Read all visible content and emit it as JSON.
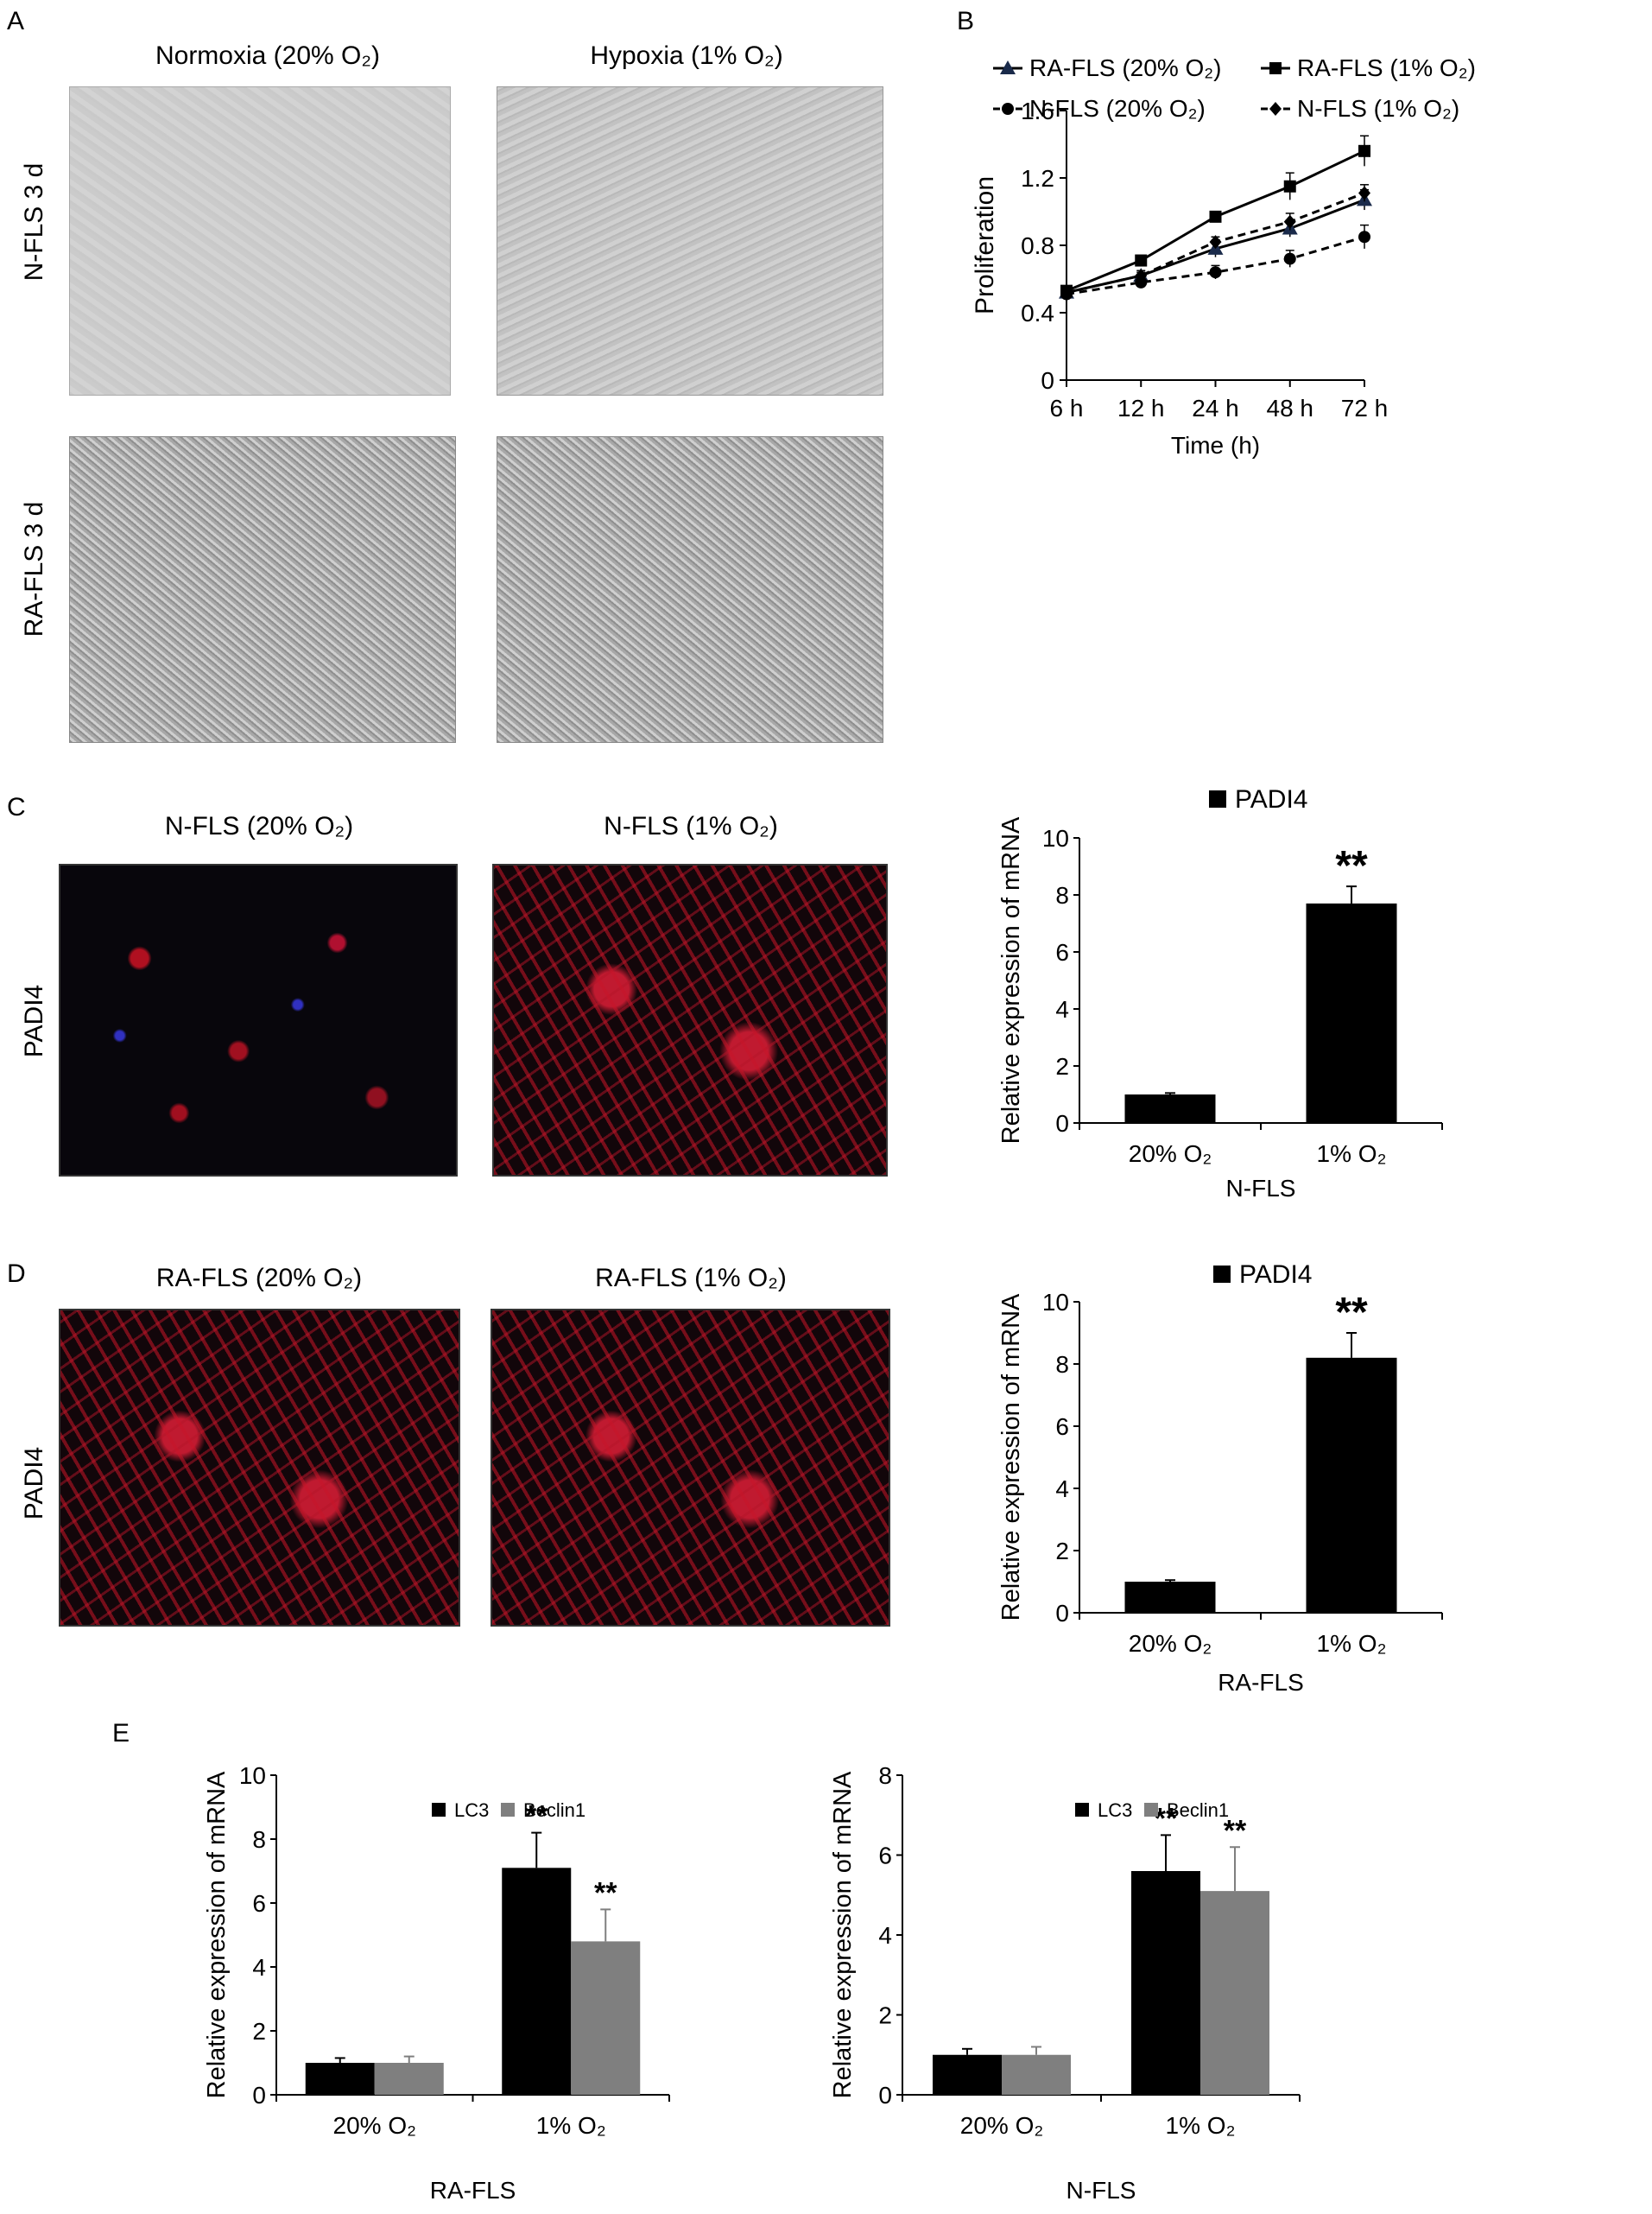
{
  "panelA": {
    "letter": "A",
    "col_labels": [
      "Normoxia (20% O₂)",
      "Hypoxia (1% O₂)"
    ],
    "row_labels": [
      "N-FLS 3 d",
      "RA-FLS 3 d"
    ]
  },
  "panelB": {
    "letter": "B"
  },
  "panelC": {
    "letter": "C",
    "col_labels": [
      "N-FLS (20% O₂)",
      "N-FLS (1% O₂)"
    ],
    "row_label": "PADI4"
  },
  "panelD": {
    "letter": "D",
    "col_labels": [
      "RA-FLS (20% O₂)",
      "RA-FLS (1% O₂)"
    ],
    "row_label": "PADI4"
  },
  "panelE": {
    "letter": "E"
  },
  "colors": {
    "black": "#000000",
    "gray": "#7f7f7f",
    "triangle_series": "#1a2a4a"
  },
  "chart_data": [
    {
      "id": "B",
      "type": "line",
      "xlabel": "Time (h)",
      "ylabel": "Proliferation",
      "categories": [
        "6 h",
        "12 h",
        "24 h",
        "48 h",
        "72 h"
      ],
      "ylim": [
        0,
        1.6
      ],
      "yticks": [
        "0",
        "0.4",
        "0.8",
        "1.2",
        "1.6"
      ],
      "legend": "top",
      "series": [
        {
          "name": "RA-FLS (20% O₂)",
          "marker": "triangle",
          "dash": "solid",
          "values": [
            0.52,
            0.62,
            0.78,
            0.9,
            1.07
          ],
          "errors": [
            0.02,
            0.03,
            0.05,
            0.05,
            0.06
          ]
        },
        {
          "name": "RA-FLS (1% O₂)",
          "marker": "square",
          "dash": "solid",
          "values": [
            0.53,
            0.71,
            0.97,
            1.15,
            1.36
          ],
          "errors": [
            0.02,
            0.03,
            0.03,
            0.08,
            0.09
          ]
        },
        {
          "name": "N-FLS (20% O₂)",
          "marker": "circle",
          "dash": "dashed",
          "values": [
            0.51,
            0.58,
            0.64,
            0.72,
            0.85
          ],
          "errors": [
            0.02,
            0.02,
            0.04,
            0.05,
            0.07
          ]
        },
        {
          "name": "N-FLS (1% O₂)",
          "marker": "diamond",
          "dash": "dashed",
          "values": [
            0.52,
            0.62,
            0.82,
            0.94,
            1.11
          ],
          "errors": [
            0.02,
            0.02,
            0.03,
            0.05,
            0.05
          ]
        }
      ]
    },
    {
      "id": "C",
      "type": "bar",
      "legend_entry": "PADI4",
      "categories": [
        "20% O₂",
        "1% O₂"
      ],
      "xlabel": "N-FLS",
      "ylabel": "Relative expression of mRNA",
      "ylim": [
        0,
        10
      ],
      "yticks": [
        "0",
        "2",
        "4",
        "6",
        "8",
        "10"
      ],
      "values": [
        1.0,
        7.7
      ],
      "errors": [
        0.05,
        0.6
      ],
      "annotations": [
        "",
        "**"
      ]
    },
    {
      "id": "D",
      "type": "bar",
      "legend_entry": "PADI4",
      "categories": [
        "20% O₂",
        "1% O₂"
      ],
      "xlabel": "RA-FLS",
      "ylabel": "Relative expression of mRNA",
      "ylim": [
        0,
        10
      ],
      "yticks": [
        "0",
        "2",
        "4",
        "6",
        "8",
        "10"
      ],
      "values": [
        1.0,
        8.2
      ],
      "errors": [
        0.05,
        0.8
      ],
      "annotations": [
        "",
        "**"
      ]
    },
    {
      "id": "E1",
      "type": "bar",
      "categories": [
        "20% O₂",
        "1% O₂"
      ],
      "xlabel": "RA-FLS",
      "ylabel": "Relative expression of mRNA",
      "ylim": [
        0,
        10
      ],
      "yticks": [
        "0",
        "2",
        "4",
        "6",
        "8",
        "10"
      ],
      "series": [
        {
          "name": "LC3",
          "values": [
            1.0,
            7.1
          ],
          "errors": [
            0.15,
            1.1
          ],
          "annotations": [
            "",
            "**"
          ]
        },
        {
          "name": "Beclin1",
          "values": [
            1.0,
            4.8
          ],
          "errors": [
            0.2,
            1.0
          ],
          "annotations": [
            "",
            "**"
          ]
        }
      ]
    },
    {
      "id": "E2",
      "type": "bar",
      "categories": [
        "20% O₂",
        "1% O₂"
      ],
      "xlabel": "N-FLS",
      "ylabel": "Relative expression of mRNA",
      "ylim": [
        0,
        8
      ],
      "yticks": [
        "0",
        "2",
        "4",
        "6",
        "8"
      ],
      "series": [
        {
          "name": "LC3",
          "values": [
            1.0,
            5.6
          ],
          "errors": [
            0.15,
            0.9
          ],
          "annotations": [
            "",
            "**"
          ]
        },
        {
          "name": "Beclin1",
          "values": [
            1.0,
            5.1
          ],
          "errors": [
            0.2,
            1.1
          ],
          "annotations": [
            "",
            "**"
          ]
        }
      ]
    }
  ]
}
